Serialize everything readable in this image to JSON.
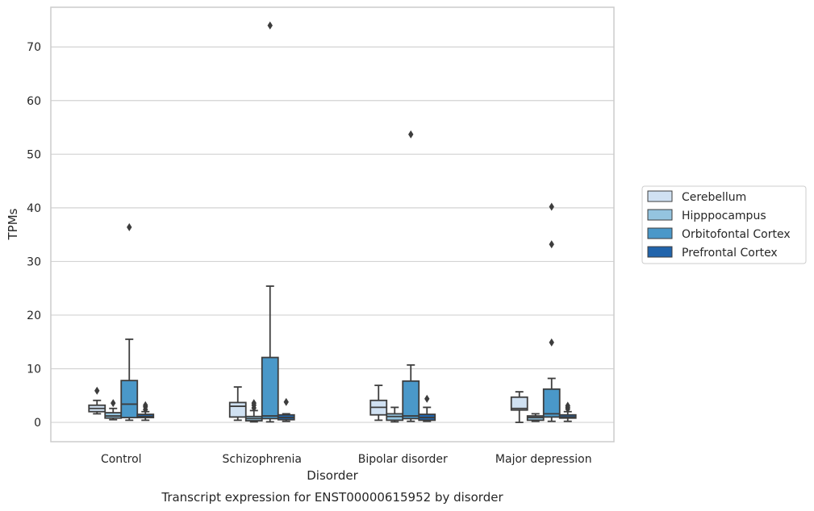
{
  "chart_data": {
    "type": "box",
    "caption": "Transcript expression for ENST00000615952 by disorder",
    "xlabel": "Disorder",
    "ylabel": "TPMs",
    "ylim": [
      -3.6,
      77.4
    ],
    "yticks": [
      0,
      10,
      20,
      30,
      40,
      50,
      60,
      70
    ],
    "grid": "horizontal",
    "legend_position": "right",
    "categories": [
      "Control",
      "Schizophrenia",
      "Bipolar disorder",
      "Major depression"
    ],
    "series": [
      {
        "name": "Cerebellum",
        "color": "#d0e1f2",
        "boxes": [
          {
            "whisker_low": 1.6,
            "q1": 2.0,
            "median": 2.6,
            "q3": 3.2,
            "whisker_high": 4.1,
            "outliers": [
              5.9
            ]
          },
          {
            "whisker_low": 0.4,
            "q1": 1.0,
            "median": 3.0,
            "q3": 3.7,
            "whisker_high": 6.6,
            "outliers": []
          },
          {
            "whisker_low": 0.4,
            "q1": 1.4,
            "median": 2.8,
            "q3": 4.1,
            "whisker_high": 6.9,
            "outliers": []
          },
          {
            "whisker_low": 0.0,
            "q1": 2.3,
            "median": 2.6,
            "q3": 4.7,
            "whisker_high": 5.7,
            "outliers": []
          }
        ]
      },
      {
        "name": "Hipppocampus",
        "color": "#94c4df",
        "boxes": [
          {
            "whisker_low": 0.5,
            "q1": 0.8,
            "median": 1.2,
            "q3": 1.8,
            "whisker_high": 2.6,
            "outliers": [
              3.6
            ]
          },
          {
            "whisker_low": 0.1,
            "q1": 0.3,
            "median": 0.7,
            "q3": 1.1,
            "whisker_high": 2.2,
            "outliers": [
              2.7,
              3.2,
              3.6
            ]
          },
          {
            "whisker_low": 0.1,
            "q1": 0.4,
            "median": 1.1,
            "q3": 1.6,
            "whisker_high": 2.8,
            "outliers": []
          },
          {
            "whisker_low": 0.2,
            "q1": 0.4,
            "median": 0.9,
            "q3": 1.2,
            "whisker_high": 1.6,
            "outliers": []
          }
        ]
      },
      {
        "name": "Orbitofontal Cortex",
        "color": "#4a98c9",
        "boxes": [
          {
            "whisker_low": 0.4,
            "q1": 0.9,
            "median": 3.4,
            "q3": 7.8,
            "whisker_high": 15.5,
            "outliers": [
              36.4
            ]
          },
          {
            "whisker_low": 0.1,
            "q1": 0.7,
            "median": 1.2,
            "q3": 12.1,
            "whisker_high": 25.4,
            "outliers": [
              74.0
            ]
          },
          {
            "whisker_low": 0.2,
            "q1": 0.7,
            "median": 1.2,
            "q3": 7.7,
            "whisker_high": 10.7,
            "outliers": [
              53.7
            ]
          },
          {
            "whisker_low": 0.2,
            "q1": 1.0,
            "median": 1.6,
            "q3": 6.2,
            "whisker_high": 8.2,
            "outliers": [
              14.9,
              33.2,
              40.2
            ]
          }
        ]
      },
      {
        "name": "Prefrontal Cortex",
        "color": "#2164ab",
        "boxes": [
          {
            "whisker_low": 0.4,
            "q1": 0.9,
            "median": 1.1,
            "q3": 1.5,
            "whisker_high": 2.0,
            "outliers": [
              2.4,
              2.9,
              3.2
            ]
          },
          {
            "whisker_low": 0.2,
            "q1": 0.5,
            "median": 0.9,
            "q3": 1.4,
            "whisker_high": 1.6,
            "outliers": [
              3.8
            ]
          },
          {
            "whisker_low": 0.2,
            "q1": 0.4,
            "median": 0.9,
            "q3": 1.5,
            "whisker_high": 2.8,
            "outliers": [
              4.4
            ]
          },
          {
            "whisker_low": 0.2,
            "q1": 0.8,
            "median": 1.0,
            "q3": 1.4,
            "whisker_high": 2.0,
            "outliers": [
              2.5,
              2.8,
              3.1
            ]
          }
        ]
      }
    ]
  }
}
